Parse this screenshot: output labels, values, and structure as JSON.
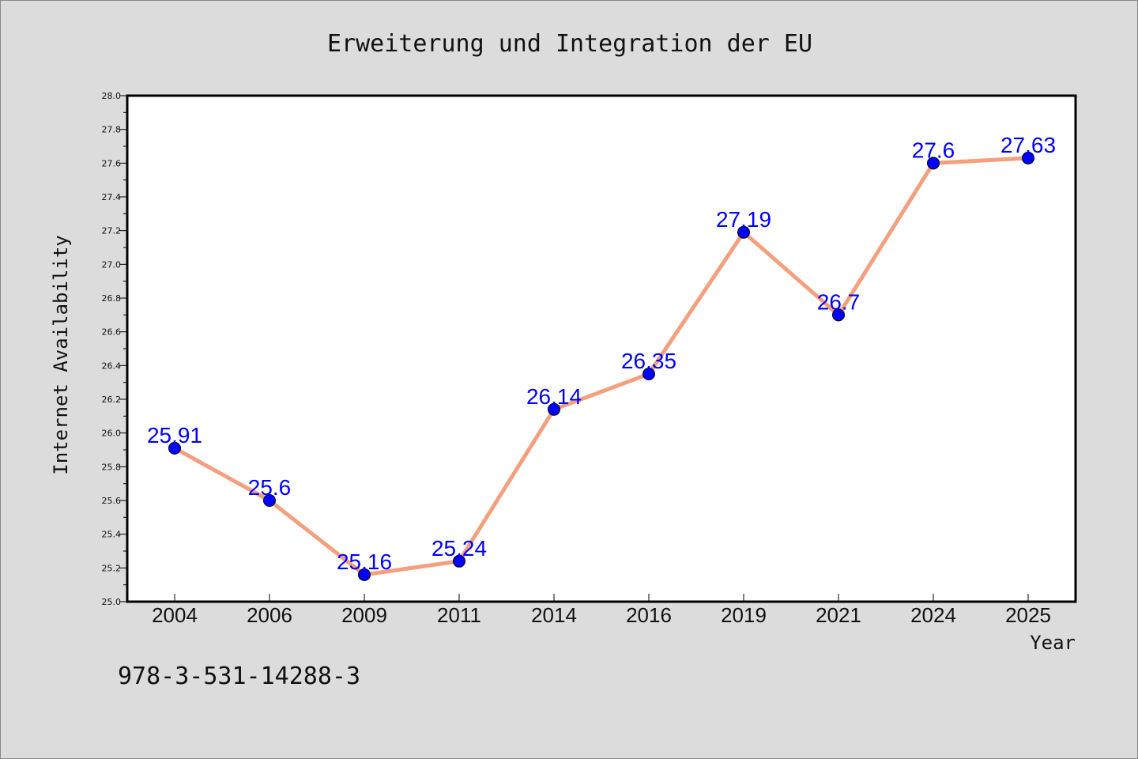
{
  "chart_data": {
    "type": "line",
    "title": "Erweiterung und Integration der EU",
    "xlabel": "Year",
    "ylabel": "Internet Availability",
    "categories": [
      "2004",
      "2006",
      "2009",
      "2011",
      "2014",
      "2016",
      "2019",
      "2021",
      "2024",
      "2025"
    ],
    "values": [
      25.91,
      25.6,
      25.16,
      25.24,
      26.14,
      26.35,
      27.19,
      26.7,
      27.6,
      27.63
    ],
    "data_labels": [
      "25.91",
      "25.6",
      "25.16",
      "25.24",
      "26.14",
      "26.35",
      "27.19",
      "26.7",
      "27.6",
      "27.63"
    ],
    "ylim": [
      25.0,
      28.0
    ],
    "yticks": [
      "25.0",
      "25.2",
      "25.4",
      "25.6",
      "25.8",
      "26.0",
      "26.2",
      "26.4",
      "26.6",
      "26.8",
      "27.0",
      "27.2",
      "27.4",
      "27.6",
      "27.8",
      "28.0"
    ],
    "grid": false,
    "line_color": "#f4a07e",
    "marker_color": "#0000ff",
    "label_color": "#0000ff"
  },
  "footnote": "978-3-531-14288-3"
}
